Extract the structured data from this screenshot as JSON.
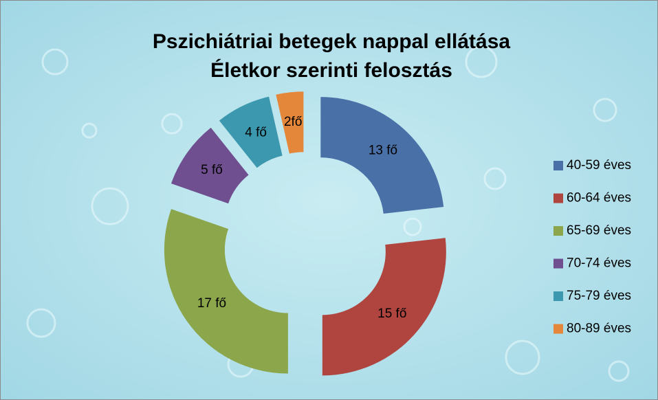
{
  "chart_data": {
    "type": "donut",
    "title": "Pszichiátriai betegek nappal ellátása",
    "subtitle": "Életkor szerinti felosztás",
    "categories": [
      "40-59 éves",
      "60-64 éves",
      "65-69 éves",
      "70-74 éves",
      "75-79 éves",
      "80-89 éves"
    ],
    "values": [
      13,
      15,
      17,
      5,
      4,
      2
    ],
    "value_labels": [
      "13 fő",
      "15 fő",
      "17 fő",
      "5 fő",
      "4 fő",
      "2fő"
    ],
    "colors": [
      "#4a70a8",
      "#b0453f",
      "#8ba64b",
      "#6f4f8f",
      "#3b98ae",
      "#e5873a"
    ],
    "legend": "right"
  }
}
